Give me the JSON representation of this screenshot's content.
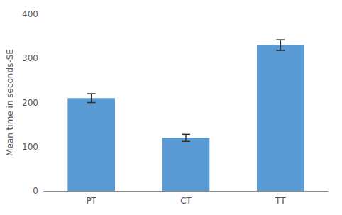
{
  "chart_data": {
    "type": "bar",
    "categories": [
      "PT",
      "CT",
      "TT"
    ],
    "values": [
      210,
      120,
      330
    ],
    "errors": [
      10,
      8,
      12
    ],
    "color": "#5B9BD5",
    "ylabel": "Mean time in seconds-SE",
    "ylim": [
      0,
      400
    ],
    "yticks": [
      0,
      100,
      200,
      300,
      400
    ],
    "grid": false
  }
}
